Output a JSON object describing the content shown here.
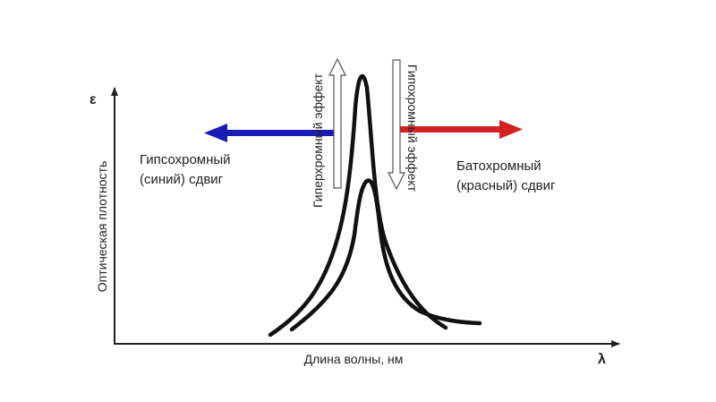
{
  "diagram": {
    "x_axis_label": "Длина волны, нм",
    "x_axis_symbol": "λ",
    "y_axis_label": "Оптическая плотность",
    "y_axis_symbol": "ε",
    "left_shift": {
      "line1": "Гипсохромный",
      "line2": "(синий) сдвиг",
      "arrow_color": "#1a1ab4"
    },
    "right_shift": {
      "line1": "Батохромный",
      "line2": "(красный) сдвиг",
      "arrow_color": "#d42020"
    },
    "hyperchromic_label": "Гиперхромный эффект",
    "hypochromic_label": "Гипохромный эффект"
  }
}
